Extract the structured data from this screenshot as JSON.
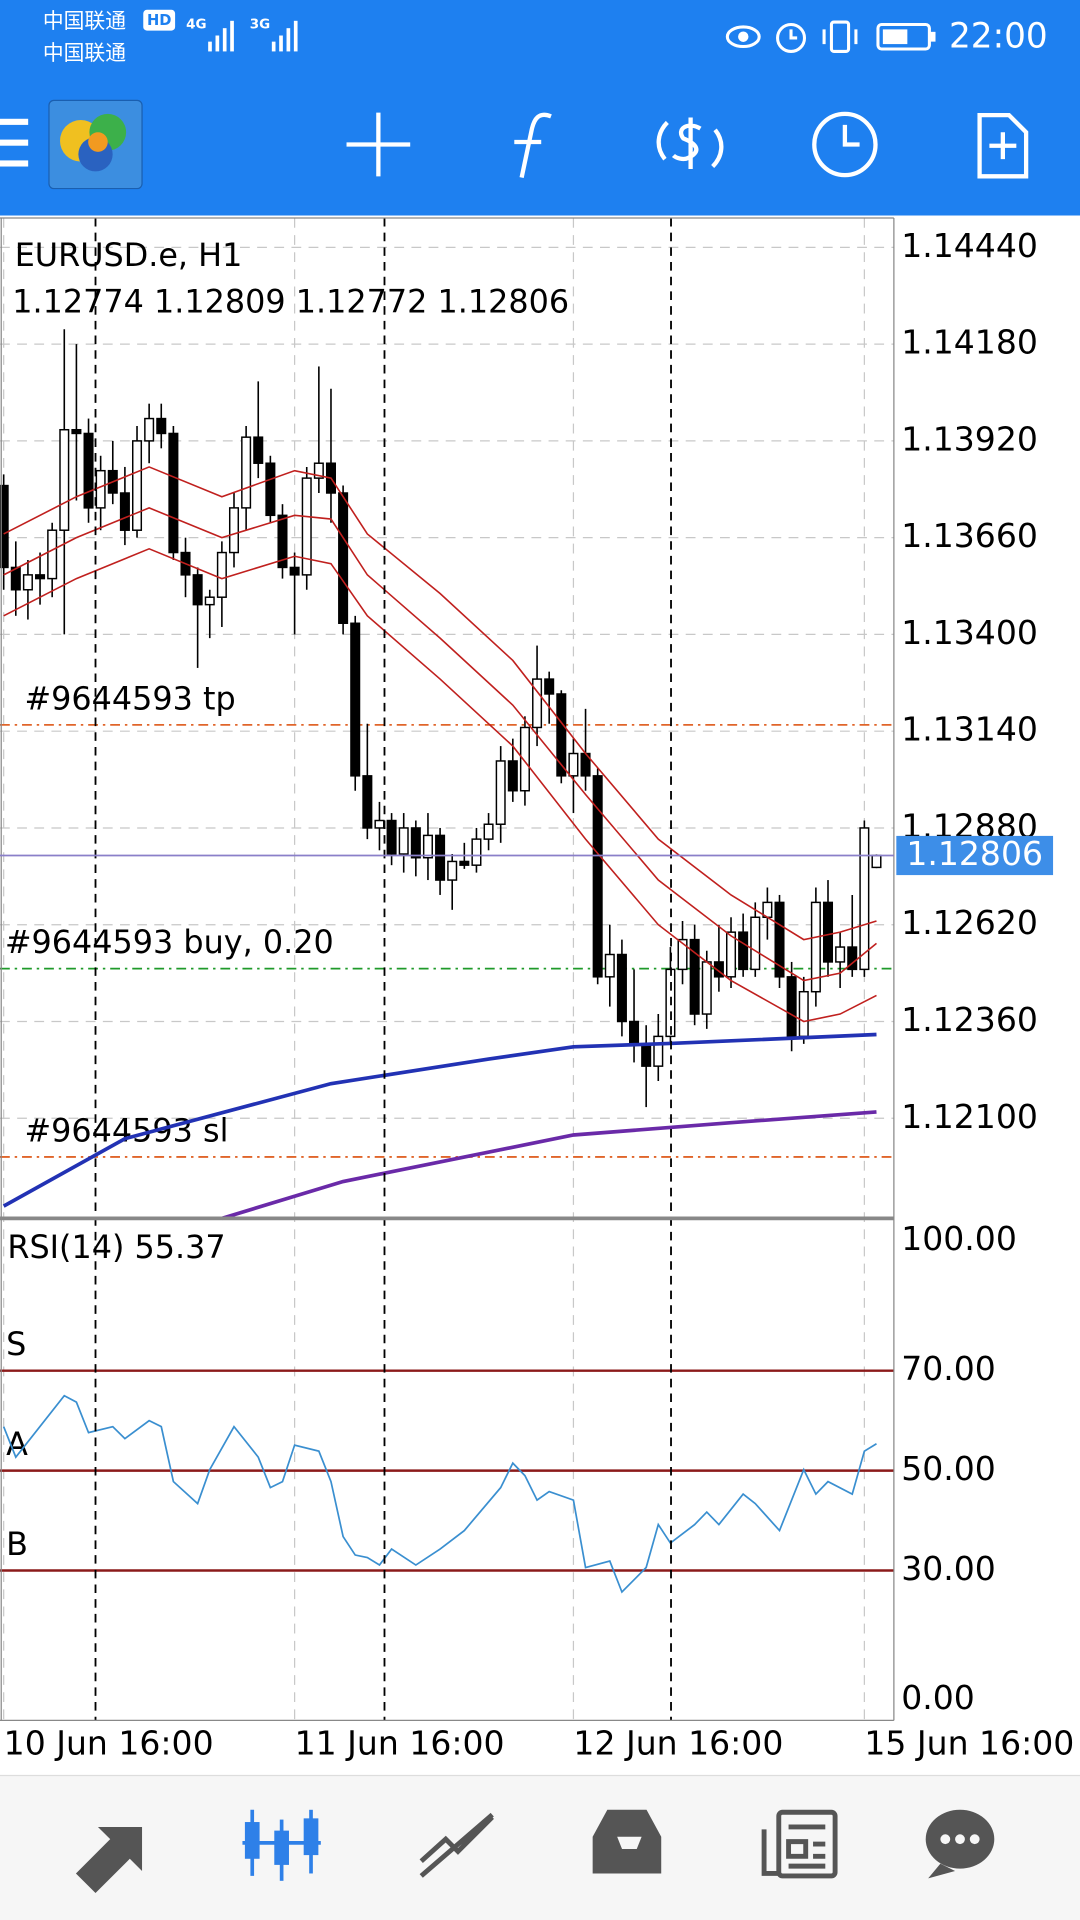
{
  "status_bar": {
    "carrier_1": "中国联通",
    "carrier_2": "中国联通",
    "hd": "HD",
    "net_1": "4G",
    "net_2": "3G",
    "time": "22:00"
  },
  "chart_data": [
    {
      "type": "candlestick",
      "title": "EURUSD.e, H1",
      "up_color": "#ffffff",
      "down_color": "#000000",
      "ohlc": [
        [
          1.138,
          1.1383,
          1.1352,
          1.1358
        ],
        [
          1.1358,
          1.1365,
          1.1345,
          1.1352
        ],
        [
          1.1352,
          1.136,
          1.1344,
          1.1356
        ],
        [
          1.1356,
          1.1362,
          1.1348,
          1.1355
        ],
        [
          1.1355,
          1.137,
          1.135,
          1.1368
        ],
        [
          1.1368,
          1.1422,
          1.134,
          1.1395
        ],
        [
          1.1395,
          1.1418,
          1.1376,
          1.1394
        ],
        [
          1.1394,
          1.1398,
          1.137,
          1.1374
        ],
        [
          1.1374,
          1.1388,
          1.1368,
          1.1384
        ],
        [
          1.1384,
          1.1392,
          1.1375,
          1.1378
        ],
        [
          1.1378,
          1.1385,
          1.1364,
          1.1368
        ],
        [
          1.1368,
          1.1396,
          1.1366,
          1.1392
        ],
        [
          1.1392,
          1.1402,
          1.1386,
          1.1398
        ],
        [
          1.1398,
          1.1402,
          1.139,
          1.1394
        ],
        [
          1.1394,
          1.1396,
          1.136,
          1.1362
        ],
        [
          1.1362,
          1.1366,
          1.135,
          1.1356
        ],
        [
          1.1356,
          1.1358,
          1.1331,
          1.1348
        ],
        [
          1.1348,
          1.1352,
          1.1339,
          1.135
        ],
        [
          1.135,
          1.1365,
          1.1342,
          1.1362
        ],
        [
          1.1362,
          1.1378,
          1.1358,
          1.1374
        ],
        [
          1.1374,
          1.1396,
          1.1368,
          1.1393
        ],
        [
          1.1393,
          1.1408,
          1.1382,
          1.1386
        ],
        [
          1.1386,
          1.1388,
          1.137,
          1.1372
        ],
        [
          1.1372,
          1.1375,
          1.1355,
          1.1358
        ],
        [
          1.1358,
          1.1362,
          1.134,
          1.1356
        ],
        [
          1.1356,
          1.1385,
          1.1352,
          1.1382
        ],
        [
          1.1382,
          1.1412,
          1.1378,
          1.1386
        ],
        [
          1.1386,
          1.1406,
          1.137,
          1.1378
        ],
        [
          1.1378,
          1.138,
          1.134,
          1.1343
        ],
        [
          1.1343,
          1.1345,
          1.1298,
          1.1302
        ],
        [
          1.1302,
          1.1316,
          1.1285,
          1.1288
        ],
        [
          1.1288,
          1.1295,
          1.1282,
          1.129
        ],
        [
          1.129,
          1.1292,
          1.1278,
          1.1281
        ],
        [
          1.1281,
          1.1292,
          1.1276,
          1.1288
        ],
        [
          1.1288,
          1.129,
          1.1275,
          1.128
        ],
        [
          1.128,
          1.1292,
          1.1274,
          1.1286
        ],
        [
          1.1286,
          1.1288,
          1.127,
          1.1274
        ],
        [
          1.1274,
          1.1281,
          1.1266,
          1.1279
        ],
        [
          1.1279,
          1.1284,
          1.1277,
          1.1278
        ],
        [
          1.1278,
          1.1288,
          1.1276,
          1.1285
        ],
        [
          1.1285,
          1.1292,
          1.1282,
          1.1289
        ],
        [
          1.1289,
          1.131,
          1.1284,
          1.1306
        ],
        [
          1.1306,
          1.1312,
          1.1295,
          1.1298
        ],
        [
          1.1298,
          1.1318,
          1.1294,
          1.1315
        ],
        [
          1.1315,
          1.1337,
          1.131,
          1.1328
        ],
        [
          1.1328,
          1.133,
          1.1316,
          1.1324
        ],
        [
          1.1324,
          1.1325,
          1.13,
          1.1302
        ],
        [
          1.1302,
          1.1312,
          1.1292,
          1.1308
        ],
        [
          1.1308,
          1.132,
          1.1298,
          1.1302
        ],
        [
          1.1302,
          1.1304,
          1.1246,
          1.1248
        ],
        [
          1.1248,
          1.1262,
          1.124,
          1.1254
        ],
        [
          1.1254,
          1.1258,
          1.1232,
          1.1236
        ],
        [
          1.1236,
          1.125,
          1.1225,
          1.123
        ],
        [
          1.123,
          1.1235,
          1.1213,
          1.1224
        ],
        [
          1.1224,
          1.1238,
          1.122,
          1.1232
        ],
        [
          1.1232,
          1.1256,
          1.123,
          1.125
        ],
        [
          1.125,
          1.1263,
          1.1246,
          1.1258
        ],
        [
          1.1258,
          1.1262,
          1.1235,
          1.1238
        ],
        [
          1.1238,
          1.1255,
          1.1234,
          1.1252
        ],
        [
          1.1252,
          1.1262,
          1.1244,
          1.1248
        ],
        [
          1.1248,
          1.1264,
          1.1245,
          1.126
        ],
        [
          1.126,
          1.1265,
          1.1248,
          1.125
        ],
        [
          1.125,
          1.1268,
          1.1248,
          1.1264
        ],
        [
          1.1264,
          1.1272,
          1.1258,
          1.1268
        ],
        [
          1.1268,
          1.127,
          1.1245,
          1.1248
        ],
        [
          1.1248,
          1.1252,
          1.1228,
          1.1232
        ],
        [
          1.1232,
          1.1248,
          1.123,
          1.1244
        ],
        [
          1.1244,
          1.1272,
          1.124,
          1.1268
        ],
        [
          1.1268,
          1.1274,
          1.1248,
          1.1252
        ],
        [
          1.1252,
          1.126,
          1.1245,
          1.1256
        ],
        [
          1.1256,
          1.127,
          1.1248,
          1.125
        ],
        [
          1.125,
          1.129,
          1.1248,
          1.1288
        ],
        [
          1.12774,
          1.12809,
          1.12772,
          1.12806
        ]
      ],
      "xticks": [
        {
          "value": 0,
          "label": "10 Jun 16:00"
        },
        {
          "value": 24,
          "label": "11 Jun 16:00"
        },
        {
          "value": 47,
          "label": "12 Jun 16:00"
        },
        {
          "value": 71,
          "label": "15 Jun 16:00"
        }
      ],
      "ylim": [
        1.11831,
        1.14519
      ],
      "yticks": [
        {
          "value": 1.1444,
          "label": "1.14440"
        },
        {
          "value": 1.1418,
          "label": "1.14180"
        },
        {
          "value": 1.1392,
          "label": "1.13920"
        },
        {
          "value": 1.1366,
          "label": "1.13660"
        },
        {
          "value": 1.134,
          "label": "1.13400"
        },
        {
          "value": 1.1314,
          "label": "1.13140"
        },
        {
          "value": 1.1288,
          "label": "1.12880"
        },
        {
          "value": 1.1262,
          "label": "1.12620"
        },
        {
          "value": 1.1236,
          "label": "1.12360"
        },
        {
          "value": 1.121,
          "label": "1.12100"
        }
      ],
      "grid": true,
      "bid_color": "#8a7fc9",
      "bid_label_color": "#3d8ee8",
      "lines": [
        {
          "color": "#c0201e",
          "width": 1.3,
          "x": [
            0,
            6,
            12,
            18,
            24,
            27,
            30,
            36,
            42,
            48,
            54,
            60,
            66,
            69,
            72
          ],
          "values": [
            1.1367,
            1.1377,
            1.1385,
            1.1377,
            1.1384,
            1.1382,
            1.1367,
            1.1351,
            1.1333,
            1.1308,
            1.1285,
            1.127,
            1.1258,
            1.126,
            1.1263
          ]
        },
        {
          "color": "#c0201e",
          "width": 1.3,
          "x": [
            0,
            6,
            12,
            18,
            24,
            27,
            30,
            36,
            42,
            48,
            54,
            60,
            66,
            69,
            72
          ],
          "values": [
            1.1356,
            1.1366,
            1.1374,
            1.1366,
            1.1372,
            1.1371,
            1.1356,
            1.1339,
            1.1321,
            1.1297,
            1.1274,
            1.1259,
            1.1247,
            1.1249,
            1.1257
          ]
        },
        {
          "color": "#c0201e",
          "width": 1.3,
          "x": [
            0,
            6,
            12,
            18,
            24,
            27,
            30,
            36,
            42,
            48,
            54,
            60,
            66,
            69,
            72
          ],
          "values": [
            1.1345,
            1.1355,
            1.1363,
            1.1355,
            1.1361,
            1.1359,
            1.1345,
            1.1328,
            1.131,
            1.1285,
            1.1262,
            1.1247,
            1.1236,
            1.1238,
            1.1243
          ]
        },
        {
          "color": "#2232b4",
          "width": 3,
          "x": [
            0,
            10,
            27,
            40,
            47,
            55,
            72
          ],
          "values": [
            1.11864,
            1.12045,
            1.12193,
            1.12259,
            1.12292,
            1.12301,
            1.12325
          ]
        },
        {
          "color": "#6a2aa8",
          "width": 3,
          "x": [
            18,
            28,
            47,
            60,
            72
          ],
          "values": [
            1.11831,
            1.1193,
            1.12055,
            1.12088,
            1.12117
          ]
        }
      ],
      "orders": [
        {
          "label": "#9644593 tp",
          "price": 1.13157,
          "color": "#e0652a"
        },
        {
          "label": "#9644593 buy, 0.20",
          "price": 1.12502,
          "color": "#1f9a2a"
        },
        {
          "label": "#9644593 sl",
          "price": 1.11996,
          "color": "#e0652a"
        }
      ]
    },
    {
      "type": "line",
      "title": "RSI(14)",
      "color": "#3a8fd0",
      "x": [
        0,
        1,
        5,
        6,
        7,
        9,
        10,
        12,
        13,
        14,
        16,
        17,
        19,
        21,
        22,
        23,
        24,
        26,
        27,
        28,
        29,
        30,
        31,
        32,
        34,
        36,
        38,
        41,
        42,
        43,
        44,
        45,
        47,
        48,
        50,
        51,
        53,
        54,
        55,
        57,
        58,
        59,
        61,
        62,
        64,
        66,
        67,
        68,
        70,
        71,
        72
      ],
      "values": [
        58.8,
        52.7,
        65.0,
        63.7,
        57.6,
        58.8,
        56.4,
        60.0,
        58.8,
        47.8,
        43.4,
        50.2,
        58.8,
        52.7,
        46.6,
        47.8,
        55.1,
        53.9,
        47.8,
        36.8,
        33.1,
        32.6,
        31.1,
        34.3,
        31.1,
        34.3,
        38.0,
        46.6,
        51.5,
        49.0,
        44.1,
        45.8,
        44.1,
        30.6,
        31.9,
        25.7,
        30.6,
        39.2,
        35.5,
        39.2,
        41.7,
        39.2,
        45.3,
        43.4,
        38.0,
        50.2,
        45.3,
        47.8,
        45.3,
        53.9,
        55.37
      ],
      "ylim": [
        0,
        100
      ],
      "yticks": [
        {
          "value": 100,
          "label": "100.00"
        },
        {
          "value": 70,
          "label": "70.00"
        },
        {
          "value": 50,
          "label": "50.00"
        },
        {
          "value": 30,
          "label": "30.00"
        },
        {
          "value": 0,
          "label": "0.00"
        }
      ],
      "level_color": "#8b1a1a",
      "levels": [
        {
          "value": 70,
          "label": "S"
        },
        {
          "value": 50,
          "label": "A"
        },
        {
          "value": 30,
          "label": "B"
        }
      ]
    }
  ]
}
